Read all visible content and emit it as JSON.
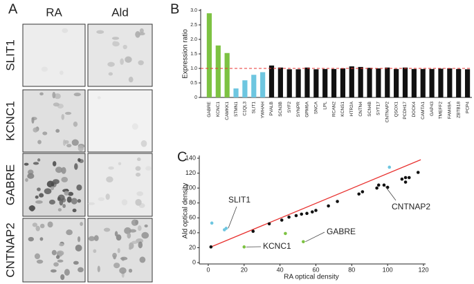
{
  "panel_a": {
    "label": "A",
    "columns": [
      "RA",
      "Ald"
    ],
    "rows": [
      "SLIT1",
      "KCNC1",
      "GABRE",
      "CNTNAP2"
    ]
  },
  "chart_data": [
    {
      "type": "bar",
      "panel_label": "B",
      "y_label": "Expression ratio",
      "categories": [
        "GABRE",
        "KCNC1",
        "CAMKK1",
        "STMN1",
        "C1QL3",
        "SLIT1",
        "YWHAH",
        "PVALB",
        "SCN3B",
        "SYF2",
        "SYNPR",
        "GPM6A",
        "SNCA",
        "LPL",
        "RCAN2",
        "KCNS1",
        "HTR2A",
        "CNTN4",
        "SCN4B",
        "SYT17",
        "CNTNAP2",
        "QSOX1",
        "PCDH17",
        "DOCK4",
        "CAMTA1",
        "GAP43",
        "TMEFF2",
        "FAM49A",
        "ZBTB18",
        "PCP4"
      ],
      "values": [
        2.9,
        1.79,
        1.53,
        0.31,
        0.59,
        0.78,
        0.87,
        1.1,
        1.03,
        0.97,
        0.97,
        1.03,
        0.97,
        0.98,
        0.98,
        1.0,
        1.07,
        1.05,
        1.02,
        1.0,
        1.03,
        0.98,
        1.03,
        0.98,
        0.98,
        0.98,
        0.99,
        1.0,
        0.98,
        0.97
      ],
      "colors": [
        "#7dc242",
        "#7dc242",
        "#7dc242",
        "#6ec6e0",
        "#6ec6e0",
        "#6ec6e0",
        "#6ec6e0",
        "#111111",
        "#111111",
        "#111111",
        "#111111",
        "#111111",
        "#111111",
        "#111111",
        "#111111",
        "#111111",
        "#111111",
        "#111111",
        "#111111",
        "#111111",
        "#111111",
        "#111111",
        "#111111",
        "#111111",
        "#111111",
        "#111111",
        "#111111",
        "#111111",
        "#111111",
        "#111111"
      ],
      "ylim": [
        0,
        3
      ],
      "yticks": [
        0,
        0.5,
        {
          "value": 1,
          "label": "1.0"
        },
        1.5,
        {
          "value": 2,
          "label": "2.0"
        },
        2.5,
        {
          "value": 3,
          "label": "3.0"
        }
      ],
      "reference_line": {
        "value": 1,
        "color": "#e8312f",
        "style": "dashed"
      }
    },
    {
      "type": "scatter",
      "panel_label": "C",
      "x_label": "RA optical density",
      "y_label": "Ald optical density",
      "series": [
        {
          "color": "#111111",
          "x": [
            1.5,
            25,
            34,
            41,
            45,
            49,
            52,
            55,
            58,
            60,
            67,
            72,
            84,
            86,
            94,
            95,
            98,
            100,
            108,
            110,
            112,
            110,
            117
          ],
          "y": [
            21,
            42,
            52,
            57,
            61,
            63,
            65,
            66,
            68,
            70,
            76,
            82,
            92,
            95,
            100,
            104,
            104,
            101,
            112,
            114,
            114,
            108,
            121
          ]
        },
        {
          "color": "#6ec6e0",
          "x": [
            2,
            9,
            10,
            101
          ],
          "y": [
            53,
            44,
            46,
            128
          ]
        },
        {
          "color": "#7dc242",
          "x": [
            20,
            43,
            53
          ],
          "y": [
            21,
            39,
            28
          ]
        }
      ],
      "fit_line": {
        "x": [
          1.5,
          118.5
        ],
        "y": [
          21,
          138
        ],
        "color": "#e8312f"
      },
      "annotations": [
        "SLIT1",
        "KCNC1",
        "GABRE",
        "CNTNAP2"
      ],
      "xlim": [
        -5,
        120
      ],
      "ylim": [
        0,
        140
      ],
      "xticks": [
        0,
        20,
        40,
        60,
        80,
        100,
        120
      ],
      "yticks": [
        0,
        20,
        40,
        60,
        80,
        100,
        120,
        140
      ]
    }
  ]
}
